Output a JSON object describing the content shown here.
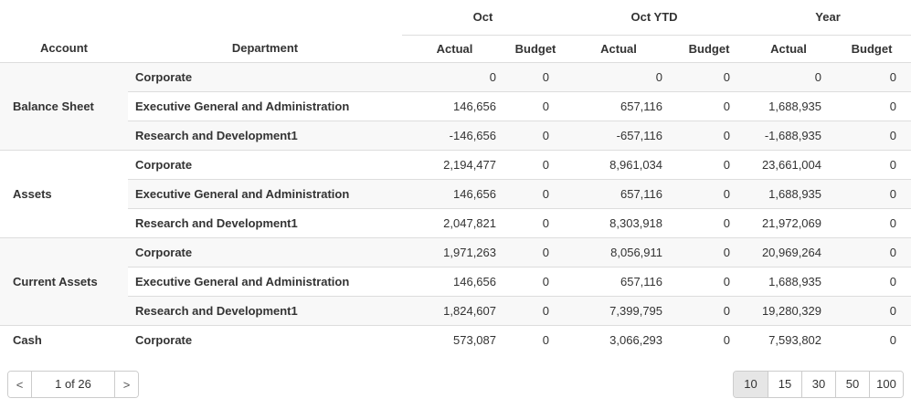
{
  "table": {
    "column_groups": [
      {
        "label": "Oct"
      },
      {
        "label": "Oct YTD"
      },
      {
        "label": "Year"
      }
    ],
    "sub_headers": {
      "account": "Account",
      "department": "Department",
      "actual": "Actual",
      "budget": "Budget"
    },
    "groups": [
      {
        "account": "Balance Sheet",
        "rows": [
          {
            "department": "Corporate",
            "values": [
              "0",
              "0",
              "0",
              "0",
              "0",
              "0"
            ]
          },
          {
            "department": "Executive General and Administration",
            "values": [
              "146,656",
              "0",
              "657,116",
              "0",
              "1,688,935",
              "0"
            ]
          },
          {
            "department": "Research and Development1",
            "values": [
              "-146,656",
              "0",
              "-657,116",
              "0",
              "-1,688,935",
              "0"
            ]
          }
        ]
      },
      {
        "account": "Assets",
        "rows": [
          {
            "department": "Corporate",
            "values": [
              "2,194,477",
              "0",
              "8,961,034",
              "0",
              "23,661,004",
              "0"
            ]
          },
          {
            "department": "Executive General and Administration",
            "values": [
              "146,656",
              "0",
              "657,116",
              "0",
              "1,688,935",
              "0"
            ]
          },
          {
            "department": "Research and Development1",
            "values": [
              "2,047,821",
              "0",
              "8,303,918",
              "0",
              "21,972,069",
              "0"
            ]
          }
        ]
      },
      {
        "account": "Current Assets",
        "rows": [
          {
            "department": "Corporate",
            "values": [
              "1,971,263",
              "0",
              "8,056,911",
              "0",
              "20,969,264",
              "0"
            ]
          },
          {
            "department": "Executive General and Administration",
            "values": [
              "146,656",
              "0",
              "657,116",
              "0",
              "1,688,935",
              "0"
            ]
          },
          {
            "department": "Research and Development1",
            "values": [
              "1,824,607",
              "0",
              "7,399,795",
              "0",
              "19,280,329",
              "0"
            ]
          }
        ]
      },
      {
        "account": "Cash",
        "rows": [
          {
            "department": "Corporate",
            "values": [
              "573,087",
              "0",
              "3,066,293",
              "0",
              "7,593,802",
              "0"
            ]
          }
        ]
      }
    ]
  },
  "pager": {
    "prev_icon": "<",
    "next_icon": ">",
    "label": "1 of 26"
  },
  "page_size": {
    "options": [
      "10",
      "15",
      "30",
      "50",
      "100"
    ],
    "selected": "10"
  },
  "colors": {
    "text": "#333333",
    "row_stripe": "#f8f8f8",
    "grid_border": "#dddddd",
    "control_border": "#cccccc",
    "selected_page_size_bg": "#e6e6e6"
  }
}
